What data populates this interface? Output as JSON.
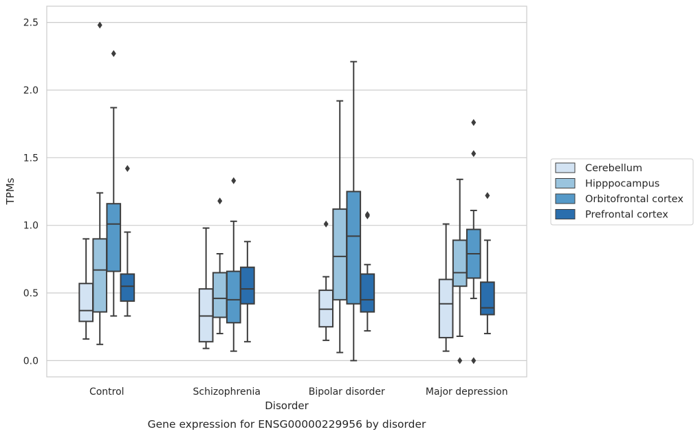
{
  "chart_data": {
    "type": "box",
    "title": "",
    "caption": "Gene expression for ENSG00000229956 by disorder",
    "xlabel": "Disorder",
    "ylabel": "TPMs",
    "ylim": [
      -0.12,
      2.62
    ],
    "yticks": [
      0.0,
      0.5,
      1.0,
      1.5,
      2.0,
      2.5
    ],
    "ytick_labels": [
      "0.0",
      "0.5",
      "1.0",
      "1.5",
      "2.0",
      "2.5"
    ],
    "grid": "horizontal",
    "legend_position": "right",
    "categories": [
      "Control",
      "Schizophrenia",
      "Bipolar disorder",
      "Major depression"
    ],
    "series": [
      {
        "name": "Cerebellum",
        "color": "#d3e3f3",
        "boxes": [
          {
            "whisker_low": 0.16,
            "q1": 0.29,
            "median": 0.37,
            "q3": 0.57,
            "whisker_high": 0.9,
            "outliers": []
          },
          {
            "whisker_low": 0.09,
            "q1": 0.14,
            "median": 0.33,
            "q3": 0.53,
            "whisker_high": 0.98,
            "outliers": []
          },
          {
            "whisker_low": 0.15,
            "q1": 0.25,
            "median": 0.38,
            "q3": 0.52,
            "whisker_high": 0.62,
            "outliers": [
              1.01
            ]
          },
          {
            "whisker_low": 0.07,
            "q1": 0.17,
            "median": 0.42,
            "q3": 0.6,
            "whisker_high": 1.01,
            "outliers": []
          }
        ]
      },
      {
        "name": "Hipppocampus",
        "color": "#9ac4de",
        "boxes": [
          {
            "whisker_low": 0.12,
            "q1": 0.36,
            "median": 0.67,
            "q3": 0.9,
            "whisker_high": 1.24,
            "outliers": [
              2.48
            ]
          },
          {
            "whisker_low": 0.2,
            "q1": 0.32,
            "median": 0.46,
            "q3": 0.65,
            "whisker_high": 0.79,
            "outliers": [
              1.18
            ]
          },
          {
            "whisker_low": 0.06,
            "q1": 0.45,
            "median": 0.77,
            "q3": 1.12,
            "whisker_high": 1.92,
            "outliers": []
          },
          {
            "whisker_low": 0.18,
            "q1": 0.55,
            "median": 0.65,
            "q3": 0.89,
            "whisker_high": 1.34,
            "outliers": [
              0.0
            ]
          }
        ]
      },
      {
        "name": "Orbitofrontal cortex",
        "color": "#5599c8",
        "boxes": [
          {
            "whisker_low": 0.33,
            "q1": 0.66,
            "median": 1.01,
            "q3": 1.16,
            "whisker_high": 1.87,
            "outliers": [
              2.27
            ]
          },
          {
            "whisker_low": 0.07,
            "q1": 0.28,
            "median": 0.45,
            "q3": 0.66,
            "whisker_high": 1.03,
            "outliers": [
              1.33
            ]
          },
          {
            "whisker_low": 0.0,
            "q1": 0.42,
            "median": 0.92,
            "q3": 1.25,
            "whisker_high": 2.21,
            "outliers": []
          },
          {
            "whisker_low": 0.46,
            "q1": 0.61,
            "median": 0.79,
            "q3": 0.97,
            "whisker_high": 1.11,
            "outliers": [
              1.76,
              1.53,
              0.0
            ]
          }
        ]
      },
      {
        "name": "Prefrontal cortex",
        "color": "#2a6ead",
        "boxes": [
          {
            "whisker_low": 0.33,
            "q1": 0.44,
            "median": 0.55,
            "q3": 0.64,
            "whisker_high": 0.95,
            "outliers": [
              1.42
            ]
          },
          {
            "whisker_low": 0.14,
            "q1": 0.42,
            "median": 0.53,
            "q3": 0.69,
            "whisker_high": 0.88,
            "outliers": []
          },
          {
            "whisker_low": 0.22,
            "q1": 0.36,
            "median": 0.45,
            "q3": 0.64,
            "whisker_high": 0.71,
            "outliers": [
              1.07,
              1.08
            ]
          },
          {
            "whisker_low": 0.2,
            "q1": 0.34,
            "median": 0.39,
            "q3": 0.58,
            "whisker_high": 0.89,
            "outliers": [
              1.22
            ]
          }
        ]
      }
    ]
  }
}
